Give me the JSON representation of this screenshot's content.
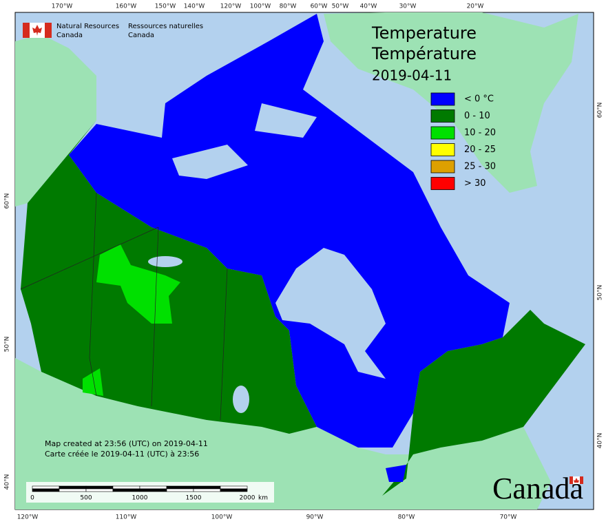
{
  "header": {
    "agency_en": [
      "Natural Resources",
      "Canada"
    ],
    "agency_fr": [
      "Ressources naturelles",
      "Canada"
    ]
  },
  "title": {
    "en": "Temperature",
    "fr": "Température",
    "date": "2019-04-11"
  },
  "legend": {
    "items": [
      {
        "label": "< 0 °C",
        "color": "#0000ff"
      },
      {
        "label": "0 - 10",
        "color": "#007a00"
      },
      {
        "label": "10 - 20",
        "color": "#00e000"
      },
      {
        "label": "20 - 25",
        "color": "#ffff00"
      },
      {
        "label": "25 - 30",
        "color": "#dda000"
      },
      {
        "label": "> 30",
        "color": "#ff0000"
      }
    ]
  },
  "graticule": {
    "top": [
      "170°W",
      "160°W",
      "150°W",
      "140°W",
      "120°W",
      "100°W",
      "80°W",
      "60°W",
      "50°W",
      "40°W",
      "30°W",
      "20°W"
    ],
    "bottom": [
      "120°W",
      "110°W",
      "100°W",
      "90°W",
      "80°W",
      "70°W"
    ],
    "left": [
      "60°N",
      "50°N",
      "40°N"
    ],
    "right": [
      "60°N",
      "50°N",
      "40°N"
    ]
  },
  "notes": [
    "Map created at 23:56 (UTC) on 2019-04-11",
    "Carte créée le 2019-04-11 (UTC) à 23:56"
  ],
  "scale_bar": {
    "labels": [
      "0",
      "500",
      "1000",
      "1500",
      "2000"
    ],
    "unit": "km"
  },
  "wordmark": "Canada"
}
